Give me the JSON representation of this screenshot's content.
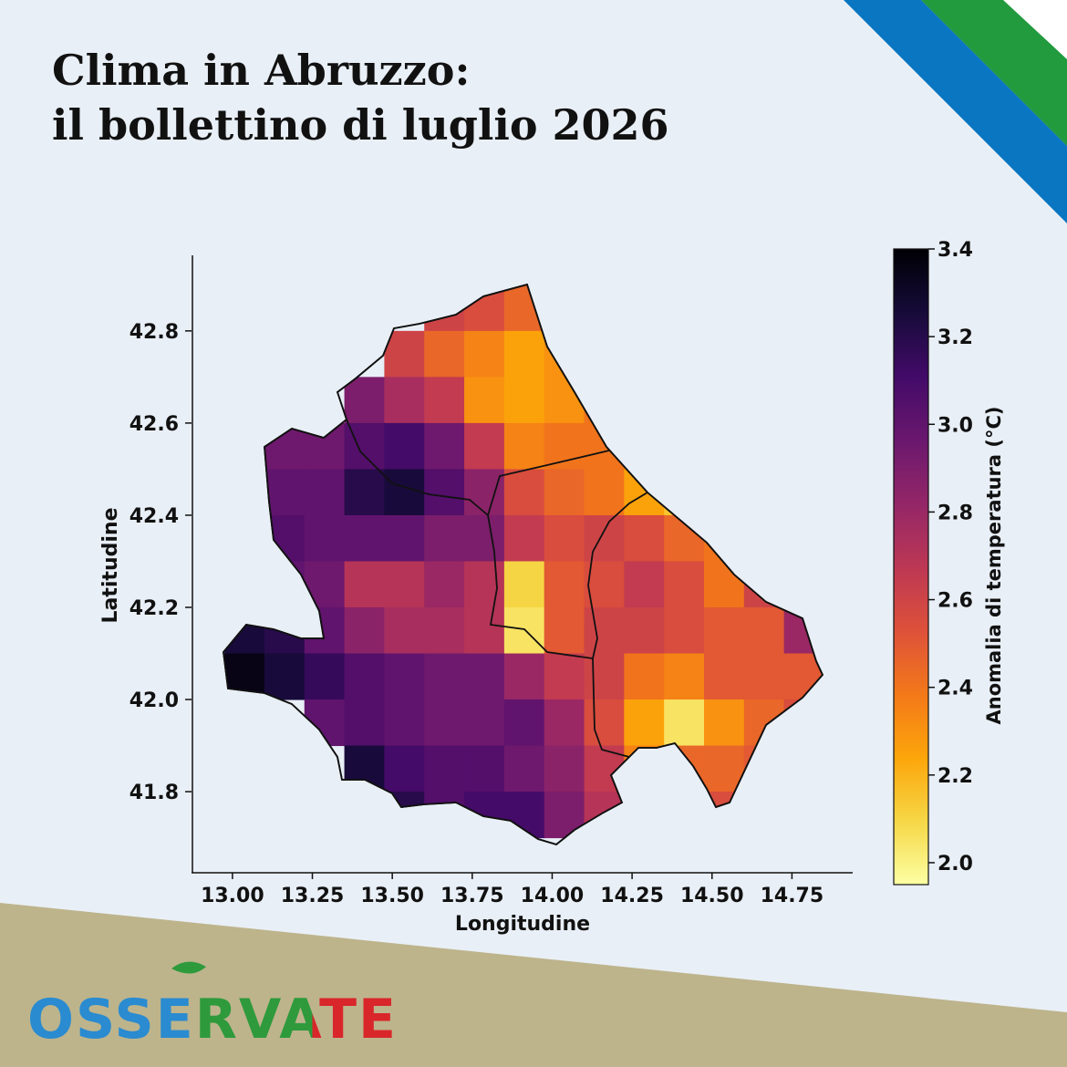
{
  "title": [
    "Clima in Abruzzo:",
    "il bollettino di luglio 2026"
  ],
  "logo": "OSSERVATE",
  "chart_data": {
    "type": "heatmap",
    "colormap": "inferno_r",
    "xlabel": "Longitudine",
    "ylabel": "Latitudine",
    "colorbar_label": "Anomalia di temperatura (°C)",
    "x": [
      13.0375,
      13.1625,
      13.2875,
      13.4125,
      13.5375,
      13.6625,
      13.7875,
      13.9125,
      14.0375,
      14.1625,
      14.2875,
      14.4125,
      14.5375,
      14.6625,
      14.7875
    ],
    "y": [
      42.85,
      42.75,
      42.65,
      42.55,
      42.45,
      42.35,
      42.25,
      42.15,
      42.05,
      41.95,
      41.85,
      41.75
    ],
    "values": [
      [
        null,
        null,
        null,
        null,
        null,
        2.6,
        2.55,
        2.45,
        null,
        null,
        null,
        null,
        null,
        null,
        null
      ],
      [
        null,
        null,
        null,
        null,
        2.6,
        2.45,
        2.35,
        2.25,
        2.3,
        null,
        null,
        null,
        null,
        null,
        null
      ],
      [
        null,
        null,
        null,
        2.9,
        2.75,
        2.65,
        2.3,
        2.25,
        2.3,
        2.4,
        null,
        null,
        null,
        null,
        null
      ],
      [
        null,
        2.95,
        2.95,
        3.05,
        3.1,
        2.95,
        2.65,
        2.35,
        2.4,
        2.4,
        2.35,
        null,
        null,
        null,
        null
      ],
      [
        null,
        3.0,
        3.0,
        3.2,
        3.25,
        3.05,
        2.85,
        2.55,
        2.45,
        2.4,
        2.25,
        2.15,
        null,
        null,
        null
      ],
      [
        null,
        3.05,
        3.0,
        3.0,
        3.0,
        2.9,
        2.9,
        2.65,
        2.55,
        2.6,
        2.55,
        2.45,
        2.4,
        null,
        null
      ],
      [
        null,
        3.0,
        2.95,
        2.7,
        2.7,
        2.8,
        2.7,
        2.1,
        2.5,
        2.55,
        2.65,
        2.55,
        2.4,
        2.6,
        null
      ],
      [
        3.25,
        3.2,
        3.0,
        2.85,
        2.75,
        2.75,
        2.7,
        2.05,
        2.5,
        2.6,
        2.6,
        2.55,
        2.5,
        2.5,
        2.8
      ],
      [
        3.35,
        3.25,
        3.15,
        3.05,
        3.0,
        2.95,
        2.95,
        2.8,
        2.65,
        2.6,
        2.4,
        2.35,
        2.5,
        2.5,
        2.5
      ],
      [
        null,
        null,
        3.0,
        3.05,
        3.0,
        2.95,
        2.95,
        3.0,
        2.8,
        2.55,
        2.25,
        2.05,
        2.3,
        2.45,
        2.55
      ],
      [
        null,
        null,
        null,
        3.25,
        3.1,
        3.05,
        3.05,
        2.95,
        2.85,
        2.65,
        2.35,
        2.45,
        2.45,
        2.5,
        null
      ],
      [
        null,
        null,
        null,
        null,
        3.2,
        3.05,
        3.1,
        3.1,
        2.9,
        2.7,
        2.6,
        null,
        2.55,
        null,
        null
      ]
    ],
    "xlim": [
      12.872,
      14.94
    ],
    "ylim": [
      41.624,
      42.964
    ],
    "xticks": [
      {
        "value": 13.0,
        "label": "13.00"
      },
      13.25,
      {
        "value": 13.5,
        "label": "13.50"
      },
      13.75,
      {
        "value": 14.0,
        "label": "14.00"
      },
      14.25,
      {
        "value": 14.5,
        "label": "14.50"
      },
      14.75
    ],
    "yticks": [
      41.8,
      {
        "value": 42.0,
        "label": "42.0"
      },
      42.2,
      42.4,
      42.6,
      42.8
    ],
    "clim": [
      1.95,
      3.4
    ],
    "cticks": [
      {
        "value": 2.0,
        "label": "2.0"
      },
      2.2,
      2.4,
      2.6,
      2.8,
      {
        "value": 3.0,
        "label": "3.0"
      },
      3.2,
      3.4
    ]
  }
}
